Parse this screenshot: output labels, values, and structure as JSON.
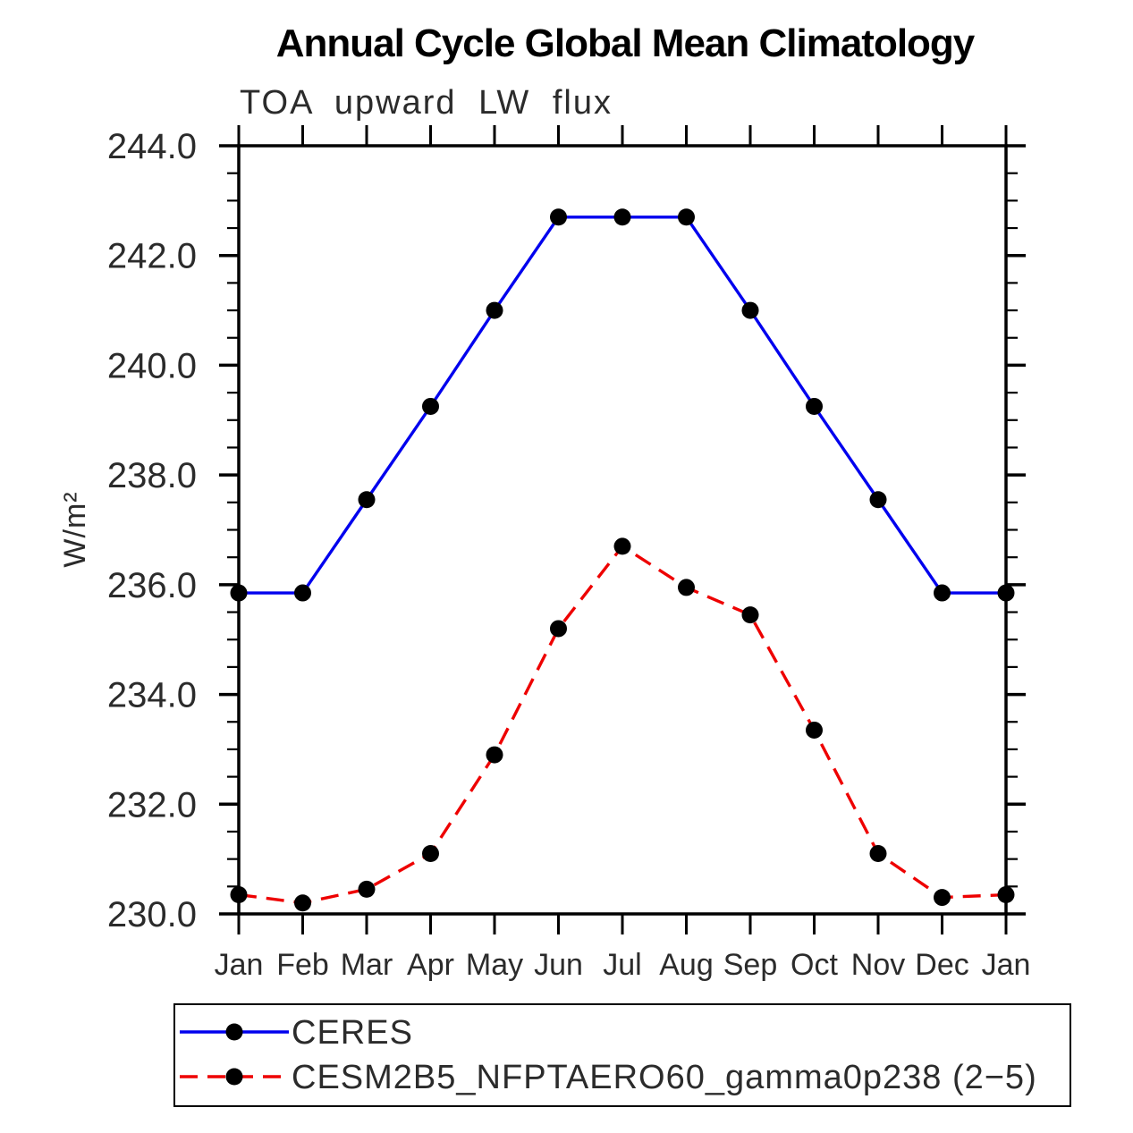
{
  "title": "Annual Cycle Global Mean Climatology",
  "subtitle": "TOA upward LW flux",
  "ylabel": "W/m²",
  "chart_data": {
    "type": "line",
    "categories": [
      "Jan",
      "Feb",
      "Mar",
      "Apr",
      "May",
      "Jun",
      "Jul",
      "Aug",
      "Sep",
      "Oct",
      "Nov",
      "Dec",
      "Jan"
    ],
    "series": [
      {
        "name": "CERES",
        "color": "#0000ee",
        "line_style": "solid",
        "marker": "circle",
        "marker_color": "#000000",
        "values": [
          235.85,
          235.85,
          237.55,
          239.25,
          241.0,
          242.7,
          242.7,
          242.7,
          241.0,
          239.25,
          237.55,
          235.85,
          235.85
        ]
      },
      {
        "name": "CESM2B5_NFPTAERO60_gamma0p238 (2−5)",
        "color": "#ee0000",
        "line_style": "dashed",
        "marker": "circle",
        "marker_color": "#000000",
        "values": [
          230.35,
          230.2,
          230.45,
          231.1,
          232.9,
          235.2,
          236.7,
          235.95,
          235.45,
          233.35,
          231.1,
          230.3,
          230.35
        ]
      }
    ],
    "ylim": [
      230.0,
      244.0
    ],
    "y_major_step": 2.0,
    "y_minor_step": 0.5,
    "y_tick_labels": [
      "230.0",
      "232.0",
      "234.0",
      "236.0",
      "238.0",
      "240.0",
      "242.0",
      "244.0"
    ],
    "grid": false,
    "legend_position": "bottom",
    "axis_color": "#000000"
  },
  "legend": {
    "entries": [
      "CERES",
      "CESM2B5_NFPTAERO60_gamma0p238 (2−5)"
    ]
  }
}
